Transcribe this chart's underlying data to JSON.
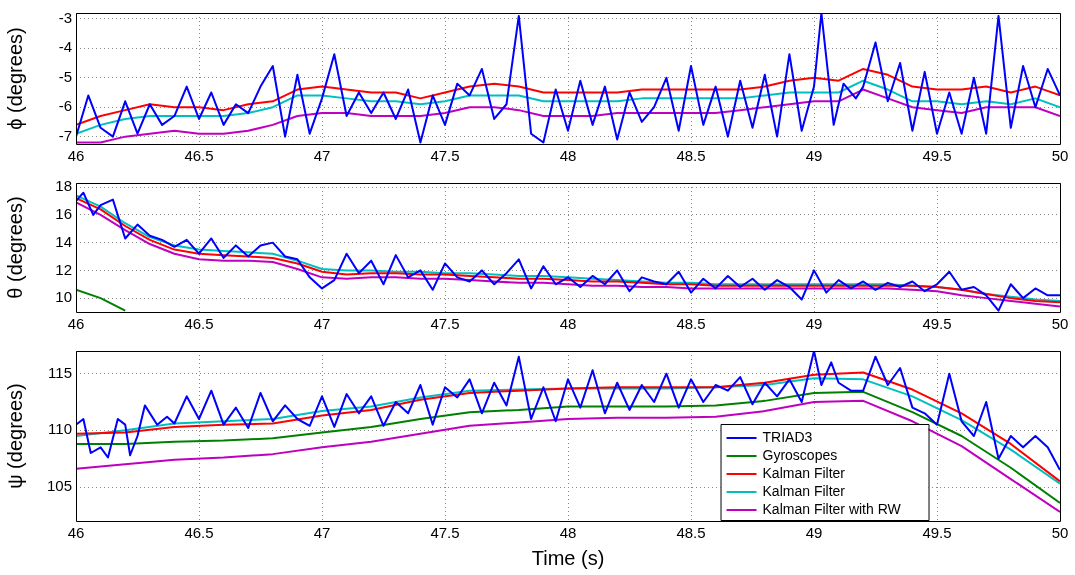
{
  "chart_data": [
    {
      "type": "line",
      "ylabel": "ϕ (degrees)",
      "xlim": [
        46,
        50
      ],
      "xticks": [
        46,
        46.5,
        47,
        47.5,
        48,
        48.5,
        49,
        49.5,
        50
      ],
      "ylim": [
        -7.25,
        -2.8
      ],
      "yticks": [
        -7,
        -6,
        -5,
        -4,
        -3
      ],
      "grid": true,
      "line_style": "solid",
      "series": [
        {
          "color": "#0000ff",
          "x": [
            46,
            46.05,
            46.1,
            46.15,
            46.2,
            46.25,
            46.3,
            46.35,
            46.4,
            46.45,
            46.5,
            46.55,
            46.6,
            46.65,
            46.7,
            46.75,
            46.8,
            46.85,
            46.9,
            46.95,
            47,
            47.05,
            47.1,
            47.15,
            47.2,
            47.25,
            47.3,
            47.35,
            47.4,
            47.45,
            47.5,
            47.55,
            47.6,
            47.65,
            47.7,
            47.75,
            47.8,
            47.85,
            47.9,
            47.95,
            48,
            48.05,
            48.1,
            48.15,
            48.2,
            48.25,
            48.3,
            48.35,
            48.4,
            48.45,
            48.5,
            48.55,
            48.6,
            48.65,
            48.7,
            48.75,
            48.8,
            48.85,
            48.9,
            48.95,
            49,
            49.03,
            49.08,
            49.12,
            49.17,
            49.2,
            49.25,
            49.3,
            49.35,
            49.4,
            49.45,
            49.5,
            49.55,
            49.6,
            49.65,
            49.7,
            49.75,
            49.8,
            49.85,
            49.9,
            49.95,
            50
          ],
          "values": [
            -7.0,
            -5.6,
            -6.7,
            -7.0,
            -5.8,
            -6.9,
            -5.9,
            -6.6,
            -6.3,
            -5.3,
            -6.4,
            -5.5,
            -6.6,
            -5.9,
            -6.2,
            -5.3,
            -4.6,
            -7.0,
            -4.9,
            -6.9,
            -5.7,
            -4.2,
            -6.3,
            -5.5,
            -6.2,
            -5.5,
            -6.4,
            -5.4,
            -7.2,
            -5.6,
            -6.6,
            -5.2,
            -5.6,
            -4.7,
            -6.4,
            -5.9,
            -2.9,
            -6.9,
            -7.2,
            -5.4,
            -6.8,
            -5.1,
            -6.6,
            -5.3,
            -7.1,
            -5.5,
            -6.5,
            -6.0,
            -5.0,
            -6.8,
            -4.6,
            -6.6,
            -5.3,
            -7.0,
            -5.1,
            -6.7,
            -4.9,
            -7.0,
            -4.2,
            -6.8,
            -5.3,
            -2.8,
            -6.6,
            -5.2,
            -5.7,
            -5.3,
            -3.8,
            -5.8,
            -4.5,
            -6.8,
            -4.8,
            -6.9,
            -5.5,
            -6.9,
            -5.0,
            -6.9,
            -2.9,
            -6.7,
            -4.6,
            -6.0,
            -4.7,
            -5.6
          ]
        },
        {
          "color": "#ff0000",
          "x": [
            46,
            46.1,
            46.2,
            46.3,
            46.4,
            46.5,
            46.6,
            46.7,
            46.8,
            46.9,
            47,
            47.1,
            47.2,
            47.3,
            47.4,
            47.5,
            47.6,
            47.7,
            47.8,
            47.9,
            48,
            48.1,
            48.2,
            48.3,
            48.4,
            48.5,
            48.6,
            48.7,
            48.8,
            48.9,
            49,
            49.1,
            49.2,
            49.3,
            49.4,
            49.5,
            49.6,
            49.7,
            49.8,
            49.9,
            50
          ],
          "values": [
            -6.6,
            -6.3,
            -6.1,
            -5.9,
            -6.0,
            -6.0,
            -6.1,
            -5.9,
            -5.8,
            -5.4,
            -5.3,
            -5.4,
            -5.5,
            -5.5,
            -5.7,
            -5.5,
            -5.3,
            -5.2,
            -5.3,
            -5.5,
            -5.5,
            -5.5,
            -5.5,
            -5.4,
            -5.4,
            -5.4,
            -5.4,
            -5.4,
            -5.3,
            -5.1,
            -5.0,
            -5.1,
            -4.7,
            -4.9,
            -5.3,
            -5.4,
            -5.4,
            -5.3,
            -5.5,
            -5.3,
            -5.6
          ]
        },
        {
          "color": "#00bfbf",
          "x": [
            46,
            46.1,
            46.2,
            46.3,
            46.4,
            46.5,
            46.6,
            46.7,
            46.8,
            46.9,
            47,
            47.1,
            47.2,
            47.3,
            47.4,
            47.5,
            47.6,
            47.7,
            47.8,
            47.9,
            48,
            48.1,
            48.2,
            48.3,
            48.4,
            48.5,
            48.6,
            48.7,
            48.8,
            48.9,
            49,
            49.1,
            49.2,
            49.3,
            49.4,
            49.5,
            49.6,
            49.7,
            49.8,
            49.9,
            50
          ],
          "values": [
            -6.9,
            -6.6,
            -6.4,
            -6.3,
            -6.3,
            -6.3,
            -6.3,
            -6.2,
            -6.0,
            -5.6,
            -5.6,
            -5.7,
            -5.8,
            -5.8,
            -5.9,
            -5.8,
            -5.6,
            -5.6,
            -5.6,
            -5.8,
            -5.8,
            -5.8,
            -5.8,
            -5.7,
            -5.7,
            -5.7,
            -5.7,
            -5.7,
            -5.6,
            -5.5,
            -5.5,
            -5.5,
            -5.1,
            -5.4,
            -5.8,
            -5.8,
            -5.9,
            -5.8,
            -5.9,
            -5.7,
            -6.0
          ]
        },
        {
          "color": "#bf00bf",
          "x": [
            46,
            46.1,
            46.2,
            46.3,
            46.4,
            46.5,
            46.6,
            46.7,
            46.8,
            46.9,
            47,
            47.1,
            47.2,
            47.3,
            47.4,
            47.5,
            47.6,
            47.7,
            47.8,
            47.9,
            48,
            48.1,
            48.2,
            48.3,
            48.4,
            48.5,
            48.6,
            48.7,
            48.8,
            48.9,
            49,
            49.1,
            49.2,
            49.3,
            49.4,
            49.5,
            49.6,
            49.7,
            49.8,
            49.9,
            50
          ],
          "values": [
            -7.2,
            -7.2,
            -7.0,
            -6.9,
            -6.8,
            -6.9,
            -6.9,
            -6.8,
            -6.6,
            -6.3,
            -6.2,
            -6.2,
            -6.3,
            -6.3,
            -6.3,
            -6.2,
            -6.0,
            -6.0,
            -6.1,
            -6.3,
            -6.3,
            -6.3,
            -6.2,
            -6.2,
            -6.2,
            -6.2,
            -6.2,
            -6.1,
            -6.0,
            -5.9,
            -5.8,
            -5.8,
            -5.4,
            -5.7,
            -6.0,
            -6.1,
            -6.2,
            -6.0,
            -6.0,
            -6.0,
            -6.3
          ]
        }
      ]
    },
    {
      "type": "line",
      "ylabel": "θ (degrees)",
      "xlim": [
        46,
        50
      ],
      "xticks": [
        46,
        46.5,
        47,
        47.5,
        48,
        48.5,
        49,
        49.5,
        50
      ],
      "ylim": [
        9,
        18.3
      ],
      "yticks": [
        10,
        12,
        14,
        16,
        18
      ],
      "grid": true,
      "line_style": "solid",
      "series": [
        {
          "color": "#0000ff",
          "x": [
            46,
            46.03,
            46.07,
            46.1,
            46.15,
            46.2,
            46.25,
            46.3,
            46.35,
            46.4,
            46.45,
            46.5,
            46.55,
            46.6,
            46.65,
            46.7,
            46.75,
            46.8,
            46.85,
            46.9,
            46.95,
            47,
            47.05,
            47.1,
            47.15,
            47.2,
            47.25,
            47.3,
            47.35,
            47.4,
            47.45,
            47.5,
            47.55,
            47.6,
            47.65,
            47.7,
            47.75,
            47.8,
            47.85,
            47.9,
            47.95,
            48,
            48.05,
            48.1,
            48.15,
            48.2,
            48.25,
            48.3,
            48.35,
            48.4,
            48.45,
            48.5,
            48.55,
            48.6,
            48.65,
            48.7,
            48.75,
            48.8,
            48.85,
            48.9,
            48.95,
            49,
            49.05,
            49.1,
            49.15,
            49.2,
            49.25,
            49.3,
            49.35,
            49.4,
            49.45,
            49.5,
            49.55,
            49.6,
            49.65,
            49.7,
            49.75,
            49.8,
            49.85,
            49.9,
            49.95,
            50
          ],
          "values": [
            17.0,
            17.6,
            16.0,
            16.7,
            17.1,
            14.3,
            15.3,
            14.5,
            14.2,
            13.7,
            14.2,
            13.2,
            14.3,
            12.9,
            13.8,
            13.0,
            13.8,
            14.0,
            13.0,
            12.8,
            11.5,
            10.7,
            11.3,
            13.2,
            11.8,
            12.7,
            11.0,
            13.1,
            11.5,
            12.0,
            10.6,
            12.5,
            11.5,
            11.2,
            12.0,
            11.0,
            11.8,
            12.8,
            10.7,
            12.3,
            11.0,
            11.5,
            10.8,
            11.6,
            11.0,
            12.0,
            10.5,
            11.5,
            11.2,
            11.0,
            11.9,
            10.4,
            11.4,
            10.7,
            11.6,
            10.8,
            11.4,
            10.6,
            11.3,
            10.8,
            9.9,
            12.0,
            10.4,
            11.3,
            10.7,
            11.2,
            10.6,
            11.1,
            10.8,
            11.2,
            10.5,
            11.0,
            11.9,
            10.6,
            10.8,
            10.2,
            9.1,
            11.0,
            10.0,
            10.7,
            10.2,
            10.2
          ]
        },
        {
          "color": "#008000",
          "x": [
            46,
            46.1,
            46.2
          ],
          "values": [
            10.6,
            10.0,
            9.1
          ]
        },
        {
          "color": "#ff0000",
          "x": [
            46,
            46.1,
            46.2,
            46.3,
            46.4,
            46.5,
            46.6,
            46.7,
            46.8,
            46.9,
            47,
            47.1,
            47.2,
            47.3,
            47.4,
            47.5,
            47.6,
            47.7,
            47.8,
            47.9,
            48,
            48.1,
            48.2,
            48.3,
            48.4,
            48.5,
            48.6,
            48.7,
            48.8,
            48.9,
            49,
            49.1,
            49.2,
            49.3,
            49.4,
            49.5,
            49.6,
            49.7,
            49.8,
            49.9,
            50
          ],
          "values": [
            17.2,
            16.4,
            15.2,
            14.2,
            13.5,
            13.2,
            13.1,
            13.0,
            12.9,
            12.5,
            11.9,
            11.7,
            11.8,
            11.8,
            11.7,
            11.7,
            11.6,
            11.5,
            11.4,
            11.4,
            11.3,
            11.2,
            11.2,
            11.1,
            11.0,
            11.0,
            10.9,
            10.9,
            10.9,
            10.9,
            10.9,
            10.9,
            10.9,
            10.9,
            10.9,
            10.8,
            10.6,
            10.3,
            10.0,
            9.8,
            9.7
          ]
        },
        {
          "color": "#00bfbf",
          "x": [
            46,
            46.1,
            46.2,
            46.3,
            46.4,
            46.5,
            46.6,
            46.7,
            46.8,
            46.9,
            47,
            47.1,
            47.2,
            47.3,
            47.4,
            47.5,
            47.6,
            47.7,
            47.8,
            47.9,
            48,
            48.1,
            48.2,
            48.3,
            48.4,
            48.5,
            48.6,
            48.7,
            48.8,
            48.9,
            49,
            49.1,
            49.2,
            49.3,
            49.4,
            49.5,
            49.6,
            49.7,
            49.8,
            49.9,
            50
          ],
          "values": [
            17.4,
            16.6,
            15.4,
            14.4,
            13.8,
            13.5,
            13.4,
            13.3,
            13.2,
            12.7,
            12.1,
            12.0,
            12.0,
            11.9,
            11.9,
            11.8,
            11.8,
            11.7,
            11.6,
            11.6,
            11.5,
            11.4,
            11.3,
            11.2,
            11.1,
            11.1,
            11.0,
            11.0,
            11.0,
            11.0,
            11.0,
            11.0,
            11.0,
            11.0,
            10.9,
            10.8,
            10.6,
            10.3,
            10.1,
            9.9,
            9.8
          ]
        },
        {
          "color": "#bf00bf",
          "x": [
            46,
            46.1,
            46.2,
            46.3,
            46.4,
            46.5,
            46.6,
            46.7,
            46.8,
            46.9,
            47,
            47.1,
            47.2,
            47.3,
            47.4,
            47.5,
            47.6,
            47.7,
            47.8,
            47.9,
            48,
            48.1,
            48.2,
            48.3,
            48.4,
            48.5,
            48.6,
            48.7,
            48.8,
            48.9,
            49,
            49.1,
            49.2,
            49.3,
            49.4,
            49.5,
            49.6,
            49.7,
            49.8,
            49.9,
            50
          ],
          "values": [
            16.9,
            16.0,
            14.9,
            13.9,
            13.2,
            12.8,
            12.7,
            12.7,
            12.6,
            12.1,
            11.5,
            11.4,
            11.5,
            11.5,
            11.4,
            11.4,
            11.3,
            11.2,
            11.1,
            11.1,
            11.0,
            10.9,
            10.9,
            10.8,
            10.8,
            10.7,
            10.7,
            10.7,
            10.7,
            10.7,
            10.7,
            10.7,
            10.7,
            10.7,
            10.6,
            10.5,
            10.2,
            10.0,
            9.8,
            9.6,
            9.4
          ]
        }
      ]
    },
    {
      "type": "line",
      "xlabel": "Time (s)",
      "ylabel": "ψ (degrees)",
      "xlim": [
        46,
        50
      ],
      "xticks": [
        46,
        46.5,
        47,
        47.5,
        48,
        48.5,
        49,
        49.5,
        50
      ],
      "ylim": [
        102,
        117
      ],
      "yticks": [
        105,
        110,
        115
      ],
      "grid": true,
      "legend": "bottom right",
      "line_style": "solid",
      "series": [
        {
          "name": "TRIAD3",
          "color": "#0000ff",
          "x": [
            46,
            46.03,
            46.06,
            46.1,
            46.13,
            46.17,
            46.2,
            46.22,
            46.25,
            46.28,
            46.33,
            46.37,
            46.4,
            46.45,
            46.5,
            46.55,
            46.6,
            46.65,
            46.7,
            46.75,
            46.8,
            46.85,
            46.9,
            46.95,
            47,
            47.05,
            47.1,
            47.15,
            47.2,
            47.25,
            47.3,
            47.35,
            47.4,
            47.45,
            47.5,
            47.55,
            47.6,
            47.65,
            47.7,
            47.75,
            47.8,
            47.85,
            47.9,
            47.95,
            48,
            48.05,
            48.1,
            48.15,
            48.2,
            48.25,
            48.3,
            48.35,
            48.4,
            48.45,
            48.5,
            48.55,
            48.6,
            48.65,
            48.7,
            48.75,
            48.8,
            48.85,
            48.9,
            48.95,
            49,
            49.03,
            49.07,
            49.1,
            49.15,
            49.2,
            49.25,
            49.3,
            49.35,
            49.4,
            49.45,
            49.5,
            49.55,
            49.6,
            49.65,
            49.7,
            49.75,
            49.8,
            49.85,
            49.9,
            49.95,
            50
          ],
          "values": [
            110.5,
            111,
            108,
            108.5,
            107.6,
            111,
            110.5,
            107.8,
            109.5,
            112.2,
            110.5,
            111.2,
            110.6,
            113,
            111,
            113.5,
            110.5,
            112,
            110.2,
            113.3,
            110.8,
            112.2,
            111,
            110.4,
            113,
            110.3,
            113.2,
            111.5,
            113,
            110.4,
            112.5,
            111.5,
            114,
            110.5,
            113.8,
            112.9,
            114.5,
            111.5,
            114.2,
            112.2,
            116.5,
            111,
            113.8,
            110.8,
            114.5,
            112,
            115.3,
            111.5,
            114.2,
            111.8,
            114,
            112.5,
            115,
            112,
            114.5,
            112.5,
            114,
            113.5,
            114.7,
            112.3,
            114.2,
            113,
            114.5,
            112.5,
            117,
            114,
            116,
            114.2,
            113.5,
            113.5,
            116.5,
            114,
            115.5,
            112,
            111.5,
            110.5,
            115,
            110.8,
            109.5,
            112.5,
            107.5,
            109.5,
            108.5,
            109.5,
            108.5,
            106.5
          ]
        },
        {
          "name": "Gyroscopes",
          "color": "#008000",
          "x": [
            46,
            46.2,
            46.4,
            46.6,
            46.8,
            47,
            47.2,
            47.4,
            47.6,
            47.8,
            48,
            48.2,
            48.4,
            48.6,
            48.8,
            49,
            49.2,
            49.4,
            49.6,
            49.8,
            50
          ],
          "values": [
            108.8,
            108.8,
            109,
            109.1,
            109.3,
            109.8,
            110.3,
            111,
            111.6,
            111.8,
            112.1,
            112.1,
            112.1,
            112.2,
            112.6,
            113.3,
            113.4,
            111.6,
            109.5,
            106.7,
            103.6
          ]
        },
        {
          "name": "Kalman Filter",
          "color": "#ff0000",
          "x": [
            46,
            46.2,
            46.4,
            46.6,
            46.8,
            47,
            47.2,
            47.4,
            47.6,
            47.8,
            48,
            48.2,
            48.4,
            48.6,
            48.8,
            49,
            49.2,
            49.4,
            49.6,
            49.8,
            50
          ],
          "values": [
            109.7,
            109.8,
            110.3,
            110.5,
            110.6,
            111.3,
            111.8,
            112.7,
            113.3,
            113.5,
            113.7,
            113.8,
            113.8,
            113.8,
            114.2,
            114.9,
            115.1,
            113.6,
            111.5,
            108.8,
            105.5
          ]
        },
        {
          "name": "Kalman Filter",
          "color": "#00bfbf",
          "x": [
            46,
            46.2,
            46.4,
            46.6,
            46.8,
            47,
            47.2,
            47.4,
            47.6,
            47.8,
            48,
            48.2,
            48.4,
            48.6,
            48.8,
            49,
            49.2,
            49.4,
            49.6,
            49.8,
            50
          ],
          "values": [
            109.5,
            110,
            110.6,
            110.8,
            111,
            111.7,
            112.1,
            112.9,
            113.5,
            113.6,
            113.7,
            113.7,
            113.7,
            113.8,
            114,
            114.6,
            114.5,
            113,
            110.9,
            108.3,
            105.3
          ]
        },
        {
          "name": "Kalman Filter with RW",
          "color": "#bf00bf",
          "x": [
            46,
            46.2,
            46.4,
            46.6,
            46.8,
            47,
            47.2,
            47.4,
            47.6,
            47.8,
            48,
            48.2,
            48.4,
            48.6,
            48.8,
            49,
            49.2,
            49.4,
            49.6,
            49.8,
            50
          ],
          "values": [
            106.6,
            107,
            107.4,
            107.6,
            107.9,
            108.5,
            109,
            109.7,
            110.4,
            110.7,
            111,
            111.1,
            111.1,
            111.2,
            111.7,
            112.5,
            112.6,
            110.8,
            108.6,
            105.7,
            102.8
          ]
        }
      ]
    }
  ]
}
